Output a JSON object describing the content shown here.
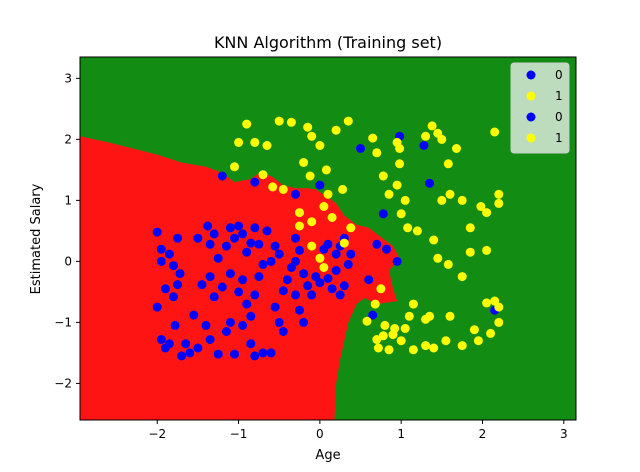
{
  "chart_data": {
    "type": "scatter",
    "title": "KNN Algorithm (Training set)",
    "xlabel": "Age",
    "ylabel": "Estimated Salary",
    "xlim": [
      -2.95,
      3.15
    ],
    "ylim": [
      -2.6,
      3.35
    ],
    "x_ticks": [
      -2,
      -1,
      0,
      1,
      2,
      3
    ],
    "y_ticks": [
      -2,
      -1,
      0,
      1,
      2,
      3
    ],
    "legend_position": "top-right",
    "colors": {
      "region_0": "#ff1414",
      "region_1": "#138c13",
      "class_0": "#0000ff",
      "class_1": "#ffff00"
    },
    "decision_boundary": [
      [
        -2.95,
        2.05
      ],
      [
        -2.6,
        1.95
      ],
      [
        -2.3,
        1.85
      ],
      [
        -2.0,
        1.75
      ],
      [
        -1.7,
        1.62
      ],
      [
        -1.4,
        1.55
      ],
      [
        -1.2,
        1.45
      ],
      [
        -1.05,
        1.3
      ],
      [
        -0.85,
        1.35
      ],
      [
        -0.75,
        1.45
      ],
      [
        -0.6,
        1.4
      ],
      [
        -0.45,
        1.25
      ],
      [
        -0.3,
        1.2
      ],
      [
        -0.15,
        1.2
      ],
      [
        -0.05,
        1.18
      ],
      [
        0.1,
        1.05
      ],
      [
        0.2,
        0.95
      ],
      [
        0.3,
        0.75
      ],
      [
        0.45,
        0.6
      ],
      [
        0.6,
        0.55
      ],
      [
        0.75,
        0.4
      ],
      [
        0.9,
        0.25
      ],
      [
        0.98,
        0.05
      ],
      [
        0.85,
        -0.15
      ],
      [
        0.9,
        -0.45
      ],
      [
        0.95,
        -0.65
      ],
      [
        0.7,
        -0.7
      ],
      [
        0.55,
        -0.6
      ],
      [
        0.45,
        -0.7
      ],
      [
        0.35,
        -1.0
      ],
      [
        0.3,
        -1.3
      ],
      [
        0.25,
        -1.6
      ],
      [
        0.2,
        -2.0
      ],
      [
        0.18,
        -2.6
      ]
    ],
    "series": [
      {
        "name": "0",
        "class": "class_0",
        "points": [
          [
            -2.0,
            0.48
          ],
          [
            -1.95,
            0.0
          ],
          [
            -1.85,
            0.12
          ],
          [
            -1.75,
            0.38
          ],
          [
            -1.8,
            -0.07
          ],
          [
            -1.72,
            -0.2
          ],
          [
            -1.95,
            0.2
          ],
          [
            -2.0,
            -0.75
          ],
          [
            -1.9,
            -0.45
          ],
          [
            -1.8,
            -0.58
          ],
          [
            -1.75,
            -0.38
          ],
          [
            -1.78,
            -1.05
          ],
          [
            -1.95,
            -1.28
          ],
          [
            -1.85,
            -1.35
          ],
          [
            -1.9,
            -1.42
          ],
          [
            -1.7,
            -1.55
          ],
          [
            -1.6,
            -1.5
          ],
          [
            -1.65,
            -1.35
          ],
          [
            -1.5,
            -1.42
          ],
          [
            -1.55,
            -0.88
          ],
          [
            -1.45,
            -0.38
          ],
          [
            -1.5,
            0.38
          ],
          [
            -1.38,
            0.58
          ],
          [
            -1.35,
            0.28
          ],
          [
            -1.3,
            0.45
          ],
          [
            -1.25,
            0.05
          ],
          [
            -1.15,
            0.25
          ],
          [
            -1.1,
            0.55
          ],
          [
            -1.05,
            0.38
          ],
          [
            -1.0,
            0.58
          ],
          [
            -0.95,
            0.45
          ],
          [
            -0.9,
            0.15
          ],
          [
            -0.85,
            0.3
          ],
          [
            -0.8,
            0.55
          ],
          [
            -0.75,
            0.28
          ],
          [
            -1.35,
            -0.25
          ],
          [
            -1.3,
            -0.58
          ],
          [
            -1.2,
            -0.42
          ],
          [
            -1.1,
            -0.2
          ],
          [
            -1.0,
            -0.5
          ],
          [
            -0.95,
            -0.3
          ],
          [
            -0.9,
            -0.7
          ],
          [
            -0.85,
            -0.9
          ],
          [
            -0.8,
            -0.55
          ],
          [
            -0.75,
            -0.25
          ],
          [
            -0.7,
            -0.05
          ],
          [
            -1.4,
            -1.05
          ],
          [
            -1.35,
            -1.28
          ],
          [
            -1.25,
            -1.52
          ],
          [
            -1.15,
            -1.15
          ],
          [
            -1.1,
            -1.0
          ],
          [
            -1.05,
            -1.52
          ],
          [
            -0.95,
            -1.05
          ],
          [
            -0.85,
            -1.35
          ],
          [
            -0.8,
            -1.55
          ],
          [
            -0.7,
            -1.5
          ],
          [
            -0.6,
            -1.5
          ],
          [
            -0.55,
            -0.75
          ],
          [
            -0.5,
            -1.0
          ],
          [
            -0.45,
            -1.15
          ],
          [
            -0.4,
            -0.3
          ],
          [
            -0.35,
            -0.1
          ],
          [
            -0.3,
            0.0
          ],
          [
            -0.25,
            0.18
          ],
          [
            -0.3,
            0.38
          ],
          [
            -0.2,
            -0.2
          ],
          [
            -0.15,
            -0.4
          ],
          [
            -0.1,
            -0.55
          ],
          [
            -0.05,
            -0.25
          ],
          [
            0.0,
            -0.35
          ],
          [
            0.05,
            -0.1
          ],
          [
            0.1,
            -0.28
          ],
          [
            0.15,
            -0.45
          ],
          [
            0.2,
            -0.15
          ],
          [
            0.25,
            0.25
          ],
          [
            0.3,
            0.38
          ],
          [
            0.35,
            -0.05
          ],
          [
            0.38,
            0.12
          ],
          [
            0.05,
            0.2
          ],
          [
            0.1,
            0.28
          ],
          [
            0.2,
            0.12
          ],
          [
            0.25,
            -0.55
          ],
          [
            0.3,
            -0.4
          ],
          [
            -0.25,
            -0.8
          ],
          [
            -0.2,
            -1.0
          ],
          [
            -0.3,
            -0.55
          ],
          [
            -0.6,
            0.0
          ],
          [
            -0.55,
            0.25
          ],
          [
            -0.65,
            0.5
          ],
          [
            -0.5,
            0.12
          ],
          [
            -0.45,
            -0.48
          ],
          [
            0.7,
            0.28
          ],
          [
            0.82,
            0.2
          ],
          [
            0.78,
            0.78
          ],
          [
            0.95,
            0.0
          ],
          [
            0.6,
            -0.3
          ],
          [
            0.65,
            -0.88
          ],
          [
            -1.2,
            1.4
          ],
          [
            -0.8,
            1.3
          ],
          [
            -0.3,
            1.1
          ],
          [
            0.5,
            1.85
          ],
          [
            0.98,
            2.05
          ],
          [
            1.28,
            1.9
          ],
          [
            1.35,
            1.28
          ],
          [
            2.15,
            -0.8
          ],
          [
            0.0,
            1.25
          ]
        ]
      },
      {
        "name": "1",
        "class": "class_1",
        "points": [
          [
            -1.0,
            1.95
          ],
          [
            -0.8,
            1.95
          ],
          [
            -0.65,
            1.9
          ],
          [
            -0.5,
            2.3
          ],
          [
            -0.35,
            2.28
          ],
          [
            -0.15,
            2.2
          ],
          [
            -0.1,
            2.05
          ],
          [
            0.0,
            1.9
          ],
          [
            0.2,
            2.15
          ],
          [
            0.35,
            2.3
          ],
          [
            -0.9,
            2.25
          ],
          [
            -1.05,
            1.55
          ],
          [
            -0.7,
            1.42
          ],
          [
            -0.58,
            1.22
          ],
          [
            -0.45,
            1.18
          ],
          [
            -0.2,
            1.62
          ],
          [
            -0.12,
            1.4
          ],
          [
            0.08,
            1.5
          ],
          [
            -0.25,
            0.8
          ],
          [
            -0.1,
            0.65
          ],
          [
            0.05,
            0.9
          ],
          [
            0.1,
            1.1
          ],
          [
            0.28,
            1.18
          ],
          [
            0.38,
            0.55
          ],
          [
            0.15,
            0.72
          ],
          [
            0.3,
            0.3
          ],
          [
            -0.1,
            0.25
          ],
          [
            0.0,
            0.05
          ],
          [
            -0.25,
            0.58
          ],
          [
            0.05,
            -0.1
          ],
          [
            0.65,
            2.02
          ],
          [
            0.7,
            1.78
          ],
          [
            0.95,
            1.95
          ],
          [
            0.98,
            1.85
          ],
          [
            0.98,
            1.6
          ],
          [
            0.85,
            1.1
          ],
          [
            0.78,
            1.4
          ],
          [
            0.95,
            1.25
          ],
          [
            1.05,
            1.0
          ],
          [
            1.0,
            0.78
          ],
          [
            1.08,
            0.55
          ],
          [
            1.2,
            0.5
          ],
          [
            1.3,
            2.05
          ],
          [
            1.38,
            2.22
          ],
          [
            1.45,
            2.1
          ],
          [
            1.5,
            2.0
          ],
          [
            1.58,
            1.6
          ],
          [
            1.68,
            1.85
          ],
          [
            1.5,
            1.0
          ],
          [
            1.6,
            1.1
          ],
          [
            1.75,
            1.0
          ],
          [
            1.85,
            0.55
          ],
          [
            1.98,
            0.9
          ],
          [
            2.05,
            0.8
          ],
          [
            2.15,
            2.12
          ],
          [
            2.2,
            1.1
          ],
          [
            2.2,
            0.95
          ],
          [
            1.4,
            0.35
          ],
          [
            1.45,
            0.05
          ],
          [
            1.58,
            -0.05
          ],
          [
            1.75,
            -0.25
          ],
          [
            1.85,
            0.15
          ],
          [
            2.05,
            0.18
          ],
          [
            2.15,
            -0.65
          ],
          [
            2.2,
            -0.75
          ],
          [
            2.2,
            -1.0
          ],
          [
            2.1,
            -1.18
          ],
          [
            2.05,
            -0.68
          ],
          [
            1.95,
            -1.3
          ],
          [
            1.9,
            -1.12
          ],
          [
            1.75,
            -1.38
          ],
          [
            1.55,
            -1.3
          ],
          [
            1.4,
            -1.42
          ],
          [
            1.3,
            -1.38
          ],
          [
            1.15,
            -1.45
          ],
          [
            1.0,
            -1.3
          ],
          [
            0.9,
            -1.2
          ],
          [
            0.85,
            -1.45
          ],
          [
            0.78,
            -1.22
          ],
          [
            0.7,
            -1.28
          ],
          [
            0.8,
            -1.05
          ],
          [
            0.92,
            -1.1
          ],
          [
            1.05,
            -1.1
          ],
          [
            1.1,
            -0.9
          ],
          [
            1.3,
            -0.95
          ],
          [
            0.72,
            -1.42
          ],
          [
            0.68,
            -0.7
          ],
          [
            0.58,
            -0.98
          ],
          [
            0.75,
            -0.45
          ],
          [
            1.15,
            -0.7
          ],
          [
            1.35,
            -0.9
          ],
          [
            1.6,
            -0.9
          ]
        ]
      }
    ],
    "legend": [
      {
        "label": "0",
        "class": "class_0"
      },
      {
        "label": "1",
        "class": "class_1"
      },
      {
        "label": "0",
        "class": "class_0"
      },
      {
        "label": "1",
        "class": "class_1"
      }
    ]
  }
}
